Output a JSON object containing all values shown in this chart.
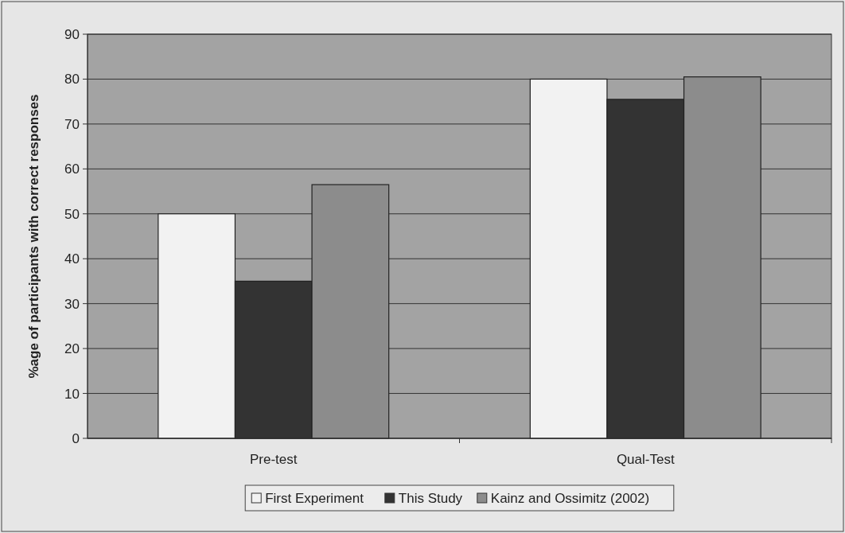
{
  "chart_data": {
    "type": "bar",
    "ylabel": "%age of participants with correct responses",
    "categories": [
      "Pre-test",
      "Qual-Test"
    ],
    "series": [
      {
        "name": "First Experiment",
        "color": "#f2f2f2",
        "values": [
          50,
          80
        ]
      },
      {
        "name": "This Study",
        "color": "#333333",
        "values": [
          35,
          75.5
        ]
      },
      {
        "name": "Kainz and Ossimitz (2002)",
        "color": "#8c8c8c",
        "values": [
          56.5,
          80.5
        ]
      }
    ],
    "ylim": [
      0,
      90
    ],
    "yticks": [
      0,
      10,
      20,
      30,
      40,
      50,
      60,
      70,
      80,
      90
    ],
    "grid": "y",
    "legend": "bottom"
  }
}
